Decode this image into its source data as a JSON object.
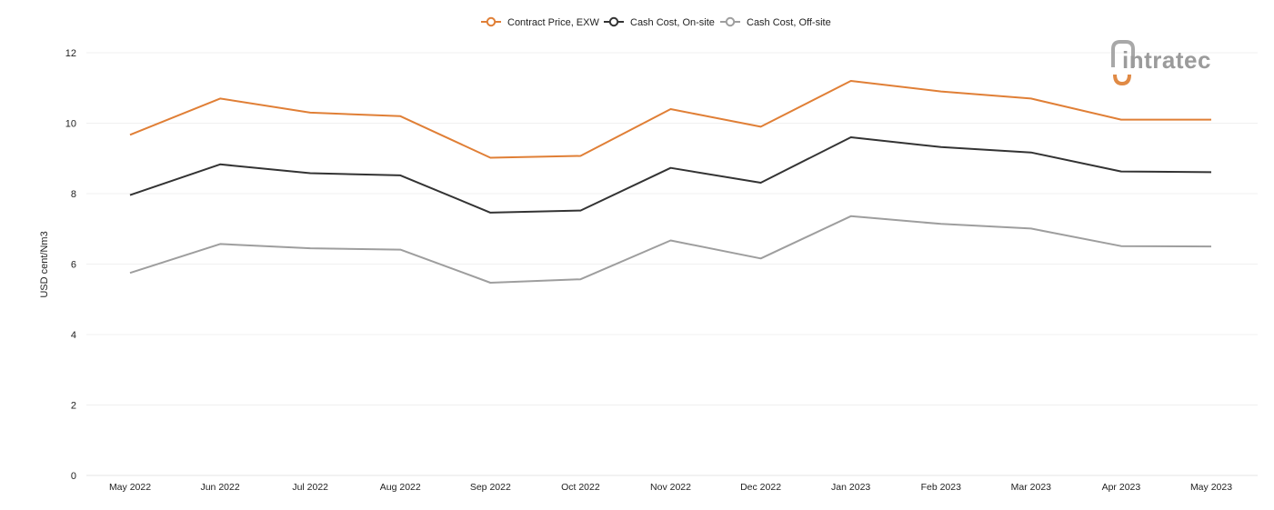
{
  "chart_data": {
    "type": "line",
    "title": "",
    "xlabel": "",
    "ylabel": "USD cent/Nm3",
    "ylim": [
      0,
      12
    ],
    "yticks": [
      0,
      2,
      4,
      6,
      8,
      10,
      12
    ],
    "grid": true,
    "legend_position": "top-center",
    "categories": [
      "May 2022",
      "Jun 2022",
      "Jul 2022",
      "Aug 2022",
      "Sep 2022",
      "Oct 2022",
      "Nov 2022",
      "Dec 2022",
      "Jan 2023",
      "Feb 2023",
      "Mar 2023",
      "Apr 2023",
      "May 2023"
    ],
    "series": [
      {
        "name": "Contract Price, EXW",
        "color": "#e07f36",
        "values": [
          9.67,
          10.7,
          10.3,
          10.2,
          9.02,
          9.07,
          10.4,
          9.9,
          11.2,
          10.9,
          10.7,
          10.1,
          10.1
        ]
      },
      {
        "name": "Cash Cost, On-site",
        "color": "#333333",
        "values": [
          7.96,
          8.83,
          8.58,
          8.52,
          7.46,
          7.52,
          8.73,
          8.31,
          9.6,
          9.32,
          9.17,
          8.63,
          8.61
        ]
      },
      {
        "name": "Cash Cost, Off-site",
        "color": "#9e9e9e",
        "values": [
          5.75,
          6.57,
          6.45,
          6.41,
          5.47,
          5.57,
          6.67,
          6.16,
          7.36,
          7.14,
          7.01,
          6.51,
          6.5
        ]
      }
    ]
  },
  "logo": {
    "text": "intratec",
    "color": "#9b9b9b",
    "accent": "#e08a45"
  }
}
